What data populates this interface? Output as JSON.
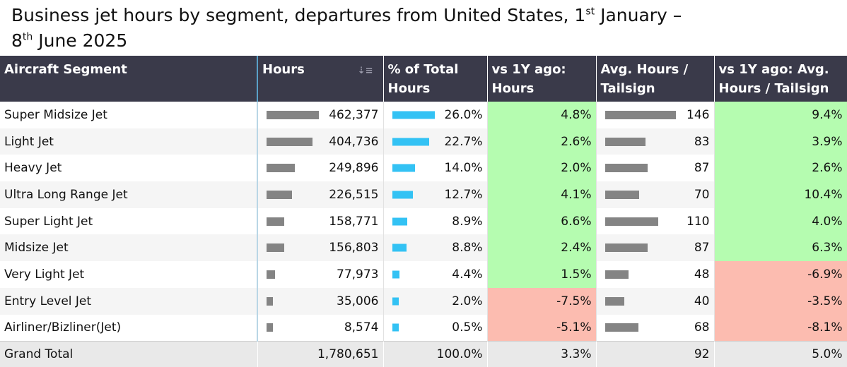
{
  "title_parts": {
    "a": "Business jet hours by segment, departures from United States, 1",
    "a_sup": "st",
    "b": " January –",
    "c": "8",
    "c_sup": "th",
    "d": " June 2025"
  },
  "headers": [
    "Aircraft Segment",
    "Hours",
    "% of Total Hours",
    "vs 1Y ago: Hours",
    "Avg. Hours / Tailsign",
    "vs 1Y ago: Avg. Hours / Tailsign"
  ],
  "sort_icon": "sort-descending-icon",
  "colors": {
    "header_bg": "#3a3a4a",
    "bar_gray": "#848484",
    "bar_blue": "#33c2f4",
    "positive": "#b5fcb0",
    "negative": "#fcbcb0"
  },
  "chart_data": {
    "type": "table",
    "columns": [
      "Aircraft Segment",
      "Hours",
      "% of Total Hours",
      "vs 1Y ago: Hours",
      "Avg. Hours / Tailsign",
      "vs 1Y ago: Avg. Hours / Tailsign"
    ],
    "rows": [
      {
        "segment": "Super Midsize Jet",
        "hours": "462,377",
        "hours_value": 462377,
        "pct": "26.0%",
        "pct_value": 26.0,
        "yoy": "4.8%",
        "yoy_value": 4.8,
        "avg": "146",
        "avg_value": 146,
        "yoy_avg": "9.4%",
        "yoy_avg_value": 9.4
      },
      {
        "segment": "Light Jet",
        "hours": "404,736",
        "hours_value": 404736,
        "pct": "22.7%",
        "pct_value": 22.7,
        "yoy": "2.6%",
        "yoy_value": 2.6,
        "avg": "83",
        "avg_value": 83,
        "yoy_avg": "3.9%",
        "yoy_avg_value": 3.9
      },
      {
        "segment": "Heavy Jet",
        "hours": "249,896",
        "hours_value": 249896,
        "pct": "14.0%",
        "pct_value": 14.0,
        "yoy": "2.0%",
        "yoy_value": 2.0,
        "avg": "87",
        "avg_value": 87,
        "yoy_avg": "2.6%",
        "yoy_avg_value": 2.6
      },
      {
        "segment": "Ultra Long Range Jet",
        "hours": "226,515",
        "hours_value": 226515,
        "pct": "12.7%",
        "pct_value": 12.7,
        "yoy": "4.1%",
        "yoy_value": 4.1,
        "avg": "70",
        "avg_value": 70,
        "yoy_avg": "10.4%",
        "yoy_avg_value": 10.4
      },
      {
        "segment": "Super Light Jet",
        "hours": "158,771",
        "hours_value": 158771,
        "pct": "8.9%",
        "pct_value": 8.9,
        "yoy": "6.6%",
        "yoy_value": 6.6,
        "avg": "110",
        "avg_value": 110,
        "yoy_avg": "4.0%",
        "yoy_avg_value": 4.0
      },
      {
        "segment": "Midsize Jet",
        "hours": "156,803",
        "hours_value": 156803,
        "pct": "8.8%",
        "pct_value": 8.8,
        "yoy": "2.4%",
        "yoy_value": 2.4,
        "avg": "87",
        "avg_value": 87,
        "yoy_avg": "6.3%",
        "yoy_avg_value": 6.3
      },
      {
        "segment": "Very Light Jet",
        "hours": "77,973",
        "hours_value": 77973,
        "pct": "4.4%",
        "pct_value": 4.4,
        "yoy": "1.5%",
        "yoy_value": 1.5,
        "avg": "48",
        "avg_value": 48,
        "yoy_avg": "-6.9%",
        "yoy_avg_value": -6.9
      },
      {
        "segment": "Entry Level Jet",
        "hours": "35,006",
        "hours_value": 35006,
        "pct": "2.0%",
        "pct_value": 2.0,
        "yoy": "-7.5%",
        "yoy_value": -7.5,
        "avg": "40",
        "avg_value": 40,
        "yoy_avg": "-3.5%",
        "yoy_avg_value": -3.5
      },
      {
        "segment": "Airliner/Bizliner(Jet)",
        "hours": "8,574",
        "hours_value": 8574,
        "pct": "0.5%",
        "pct_value": 0.5,
        "yoy": "-5.1%",
        "yoy_value": -5.1,
        "avg": "68",
        "avg_value": 68,
        "yoy_avg": "-8.1%",
        "yoy_avg_value": -8.1
      }
    ],
    "total": {
      "segment": "Grand Total",
      "hours": "1,780,651",
      "pct": "100.0%",
      "yoy": "3.3%",
      "avg": "92",
      "yoy_avg": "5.0%"
    }
  }
}
